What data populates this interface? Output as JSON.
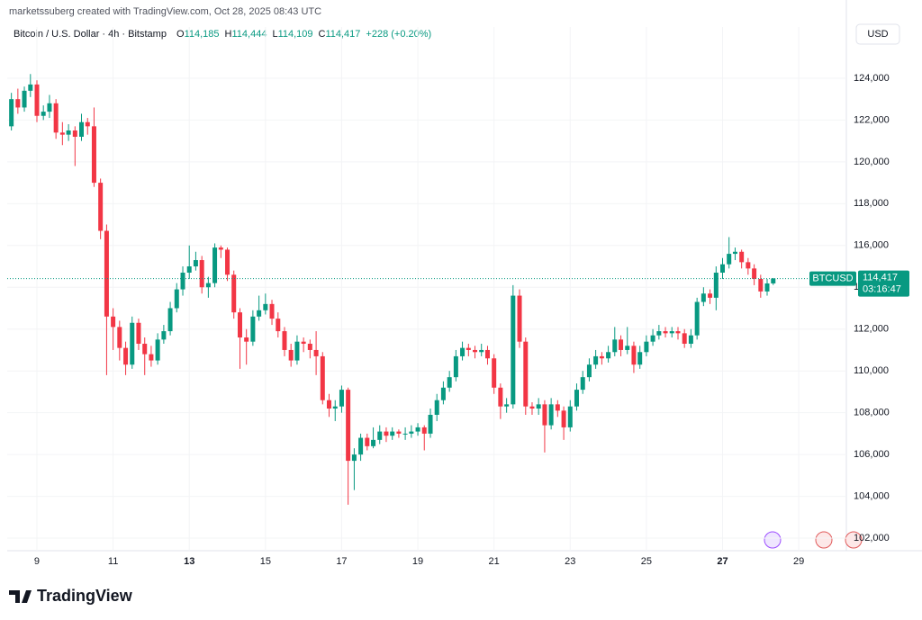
{
  "chart_data": {
    "type": "candlestick",
    "attribution": "marketssuberg created with TradingView.com, Oct 28, 2025 08:43 UTC",
    "title": "Bitcoin / U.S. Dollar · 4h · Bitstamp",
    "ohlc": [
      {
        "label": "O",
        "value": "114,185"
      },
      {
        "label": "H",
        "value": "114,444"
      },
      {
        "label": "L",
        "value": "114,109"
      },
      {
        "label": "C",
        "value": "114,417"
      }
    ],
    "change": "+228 (+0.20%)",
    "currency": "USD",
    "brand": "TradingView",
    "up_color": "#089981",
    "down_color": "#f23645",
    "grid": true,
    "x": [
      8.33,
      8.5,
      8.67,
      8.83,
      9,
      9.17,
      9.33,
      9.5,
      9.67,
      9.83,
      10,
      10.17,
      10.33,
      10.5,
      10.67,
      10.83,
      11,
      11.17,
      11.33,
      11.5,
      11.67,
      11.83,
      12,
      12.17,
      12.33,
      12.5,
      12.67,
      12.83,
      13,
      13.17,
      13.33,
      13.5,
      13.67,
      13.83,
      14,
      14.17,
      14.33,
      14.5,
      14.67,
      14.83,
      15,
      15.17,
      15.33,
      15.5,
      15.67,
      15.83,
      16,
      16.17,
      16.33,
      16.5,
      16.67,
      16.83,
      17,
      17.17,
      17.33,
      17.5,
      17.67,
      17.83,
      18,
      18.17,
      18.33,
      18.5,
      18.67,
      18.83,
      19,
      19.17,
      19.33,
      19.5,
      19.67,
      19.83,
      20,
      20.17,
      20.33,
      20.5,
      20.67,
      20.83,
      21,
      21.17,
      21.33,
      21.5,
      21.67,
      21.83,
      22,
      22.17,
      22.33,
      22.5,
      22.67,
      22.83,
      23,
      23.17,
      23.33,
      23.5,
      23.67,
      23.83,
      24,
      24.17,
      24.33,
      24.5,
      24.67,
      24.83,
      25,
      25.17,
      25.33,
      25.5,
      25.67,
      25.83,
      26,
      26.17,
      26.33,
      26.5,
      26.67,
      26.83,
      27,
      27.17,
      27.33,
      27.5,
      27.67,
      27.83,
      28,
      28.17,
      28.33
    ],
    "open": [
      121700,
      123000,
      122600,
      123400,
      123700,
      122200,
      122400,
      122800,
      121400,
      121300,
      121500,
      121200,
      121900,
      121700,
      119000,
      116700,
      112600,
      112100,
      111100,
      110300,
      112300,
      111300,
      110800,
      110500,
      111500,
      111900,
      113000,
      113900,
      114700,
      115000,
      115300,
      114000,
      114200,
      115900,
      115800,
      114600,
      112800,
      111600,
      111400,
      112600,
      112900,
      113200,
      112500,
      111900,
      111000,
      110500,
      111400,
      111300,
      111000,
      110700,
      108600,
      108200,
      108300,
      109100,
      105700,
      106000,
      106800,
      106400,
      106700,
      107100,
      106900,
      107100,
      107000,
      107000,
      107100,
      107300,
      107000,
      107900,
      108600,
      109200,
      109700,
      110700,
      111100,
      111000,
      110900,
      111000,
      110600,
      109200,
      108300,
      108400,
      113600,
      111400,
      108300,
      108200,
      108400,
      107400,
      108400,
      108100,
      107300,
      108300,
      109100,
      109700,
      110300,
      110700,
      110600,
      110900,
      111500,
      111000,
      111200,
      110300,
      110900,
      111400,
      111700,
      111900,
      111800,
      111900,
      111800,
      111300,
      111700,
      113300,
      113700,
      113500,
      114700,
      115100,
      115600,
      115700,
      115200,
      114900,
      114400,
      113800,
      114185
    ],
    "high": [
      123300,
      123500,
      123600,
      124200,
      123900,
      122700,
      123200,
      123000,
      121900,
      121800,
      121700,
      122300,
      122100,
      122600,
      119200,
      117000,
      113000,
      112400,
      111400,
      112600,
      112500,
      111600,
      111200,
      111800,
      112200,
      113300,
      114200,
      115000,
      116000,
      115700,
      115500,
      114500,
      116100,
      116000,
      115900,
      114800,
      113000,
      112000,
      112900,
      113600,
      113700,
      113400,
      112800,
      112100,
      111300,
      111700,
      111600,
      111500,
      111900,
      110900,
      108900,
      108600,
      109300,
      109200,
      106300,
      107000,
      107000,
      107300,
      107400,
      107300,
      107300,
      107200,
      107300,
      107400,
      107500,
      107400,
      108200,
      108900,
      109500,
      110000,
      111000,
      111400,
      111300,
      111200,
      111300,
      111200,
      110800,
      109400,
      108700,
      114100,
      113900,
      111600,
      108500,
      108700,
      108600,
      108700,
      108600,
      108300,
      108600,
      109400,
      110000,
      110600,
      111000,
      110900,
      111200,
      112100,
      111700,
      112100,
      111400,
      111200,
      111700,
      112000,
      112200,
      112100,
      112100,
      112100,
      112000,
      112000,
      113500,
      114000,
      113900,
      115000,
      115400,
      116400,
      115900,
      115800,
      115400,
      115100,
      114600,
      114400,
      114444
    ],
    "low": [
      121500,
      122300,
      122400,
      123100,
      121900,
      122000,
      122100,
      121100,
      120800,
      121000,
      119800,
      121000,
      121300,
      118800,
      116300,
      109800,
      111000,
      110500,
      109800,
      110100,
      111000,
      109800,
      110200,
      110300,
      111300,
      111700,
      112800,
      113600,
      114400,
      114800,
      113700,
      113500,
      114000,
      115400,
      114300,
      112500,
      110100,
      110300,
      111200,
      112400,
      112700,
      112200,
      111600,
      110700,
      110200,
      110300,
      110900,
      110600,
      109800,
      108400,
      107800,
      107600,
      108000,
      103600,
      104300,
      105700,
      106200,
      106300,
      106500,
      106600,
      106700,
      106800,
      106700,
      106800,
      106900,
      106200,
      106800,
      107600,
      108400,
      109000,
      109500,
      110500,
      110700,
      110600,
      110700,
      110300,
      108900,
      107700,
      108000,
      108200,
      111100,
      107900,
      107900,
      107900,
      106100,
      107200,
      107800,
      106700,
      107100,
      108100,
      108900,
      109500,
      110100,
      110300,
      110400,
      110700,
      110700,
      110800,
      109900,
      110100,
      110700,
      111200,
      111500,
      111600,
      111600,
      111500,
      111100,
      111100,
      111500,
      113100,
      113200,
      112900,
      114400,
      114900,
      115300,
      114900,
      114600,
      114100,
      113500,
      113600,
      114109
    ],
    "close": [
      123000,
      122600,
      123400,
      123700,
      122200,
      122400,
      122800,
      121400,
      121300,
      121500,
      121200,
      121900,
      121700,
      119000,
      116700,
      112600,
      112100,
      111100,
      110300,
      112300,
      111300,
      110800,
      110500,
      111500,
      111900,
      113000,
      113900,
      114700,
      115000,
      115300,
      114000,
      114200,
      115900,
      115800,
      114600,
      112800,
      111600,
      111400,
      112600,
      112900,
      113200,
      112500,
      111900,
      111000,
      110500,
      111400,
      111300,
      111000,
      110700,
      108600,
      108200,
      108300,
      109100,
      105700,
      106000,
      106800,
      106400,
      106700,
      107100,
      106900,
      107100,
      107000,
      107000,
      107100,
      107300,
      107000,
      107900,
      108600,
      109200,
      109700,
      110700,
      111100,
      111000,
      110900,
      111000,
      110600,
      109200,
      108300,
      108400,
      113600,
      111400,
      108300,
      108200,
      108400,
      107400,
      108400,
      108100,
      107300,
      108300,
      109100,
      109700,
      110300,
      110700,
      110600,
      110900,
      111500,
      111000,
      111200,
      110300,
      110900,
      111400,
      111700,
      111900,
      111800,
      111900,
      111800,
      111300,
      111700,
      113300,
      113700,
      113500,
      114700,
      115100,
      115600,
      115700,
      115200,
      114900,
      114400,
      113800,
      114185,
      114417
    ],
    "xlim": [
      8.22,
      30.25
    ],
    "xticks": [
      9,
      11,
      13,
      15,
      17,
      19,
      21,
      23,
      25,
      27,
      29
    ],
    "bold_xticks": [
      13,
      27
    ],
    "ylim": [
      101400,
      126450
    ],
    "yticks": [
      {
        "value": 102000,
        "label": "102,000"
      },
      {
        "value": 104000,
        "label": "104,000"
      },
      {
        "value": 106000,
        "label": "106,000"
      },
      {
        "value": 108000,
        "label": "108,000"
      },
      {
        "value": 110000,
        "label": "110,000"
      },
      {
        "value": 112000,
        "label": "112,000"
      },
      {
        "value": 114000,
        "label": "114,000"
      },
      {
        "value": 116000,
        "label": "116,000"
      },
      {
        "value": 118000,
        "label": "118,000"
      },
      {
        "value": 120000,
        "label": "120,000"
      },
      {
        "value": 122000,
        "label": "122,000"
      },
      {
        "value": 124000,
        "label": "124,000"
      }
    ],
    "last_price": {
      "symbol": "BTCUSD",
      "value": 114417,
      "label": "114,417",
      "countdown": "03:16:47"
    }
  }
}
